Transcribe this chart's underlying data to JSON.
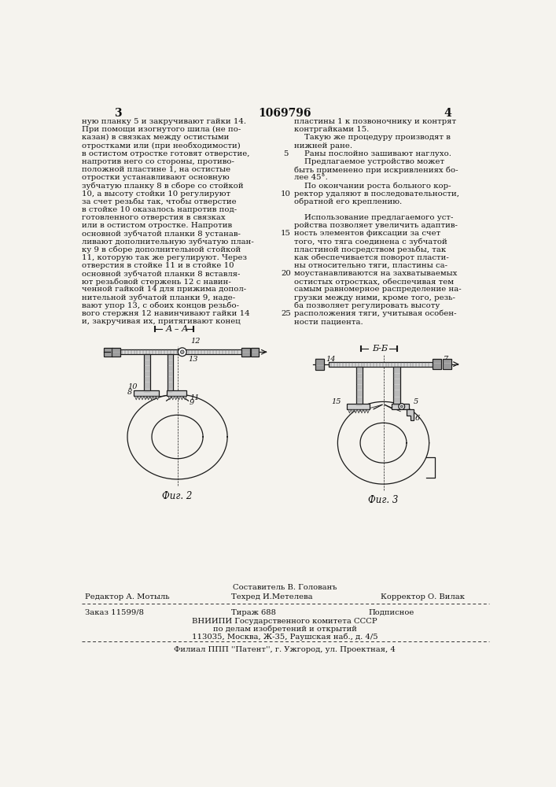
{
  "bg_color": "#f5f3ee",
  "page_number_left": "3",
  "page_title_center": "1069796",
  "page_number_right": "4",
  "left_column_text": [
    "ную планку 5 и закручивают гайки 14.",
    "При помощи изогнутого шила (не по-",
    "казан) в связках между остистыми",
    "отростками или (при необходимости)",
    "в остистом отростке готовят отверстие,",
    "напротив него со стороны, противо-",
    "положной пластине 1, на остистые",
    "отростки устанавливают основную",
    "зубчатую планку 8 в сборе со стойкой",
    "10, а высоту стойки 10 регулируют",
    "за счет резьбы так, чтобы отверстие",
    "в стойке 10 оказалось напротив под-",
    "готовленного отверстия в связках",
    "или в остистом отростке. Напротив",
    "основной зубчатой планки 8 устанав-",
    "ливают дополнительную зубчатую план-",
    "ку 9 в сборе дополнительной стойкой",
    "11, которую так же регулируют. Через",
    "отверстия в стойке 11 и в стойке 10",
    "основной зубчатой планки 8 вставля-",
    "ют резьбовой стержень 12 с навин-",
    "ченной гайкой 14 для прижима допол-",
    "нительной зубчатой планки 9, наде-",
    "вают упор 13, с обоих концов резьбо-",
    "вого стержня 12 навинчивают гайки 14",
    "и, закручивая их, притягивают конец"
  ],
  "right_column_text": [
    "пластины 1 к позвоночнику и контрят",
    "контргайками 15.",
    "    Такую же процедуру производят в",
    "нижней ране.",
    "    Раны послойно зашивают наглухо.",
    "    Предлагаемое устройство может",
    "быть применено при искривлениях бо-",
    "лее 45°.",
    "    По окончании роста больного кор-",
    "ректор удаляют в последовательности,",
    "обратной его креплению.",
    "",
    "    Использование предлагаемого уст-",
    "ройства позволяет увеличить адаптив-",
    "ность элементов фиксации за счет",
    "того, что тяга соединена с зубчатой",
    "пластиной посредством резьбы, так",
    "как обеспечивается поворот пласти-",
    "ны относительно тяги, пластины са-",
    "моустанавливаются на захватываемых",
    "остистых отростках, обеспечивая тем",
    "самым равномерное распределение на-",
    "грузки между ними, кроме того, резь-",
    "ба позволяет регулировать высоту",
    "расположения тяги, учитывая особен-",
    "ности пациента."
  ],
  "fig2_label": "Фиг. 2",
  "fig2_section": "А – А",
  "fig3_label": "Фиг. 3",
  "fig3_section": "Б-Б",
  "footer_top": "Составитель В. Голованъ",
  "footer_editor": "Редактор А. Мотыль",
  "footer_techred": "Техред И.Метелева",
  "footer_corrector": "Корректор О. Вилак",
  "footer_order": "Заказ 11599/8",
  "footer_tirazh": "Тираж 688",
  "footer_podpisnoe": "Подписное",
  "footer_vnipi": "ВНИИПИ Государственного комитета СССР",
  "footer_delam": "по делам изобретений и открытий",
  "footer_address": "113035, Москва, Ж-35, Раушская наб., д. 4/5",
  "footer_filial": "Филиал ППП ''Патент'', г. Ужгород, ул. Проектная, 4"
}
